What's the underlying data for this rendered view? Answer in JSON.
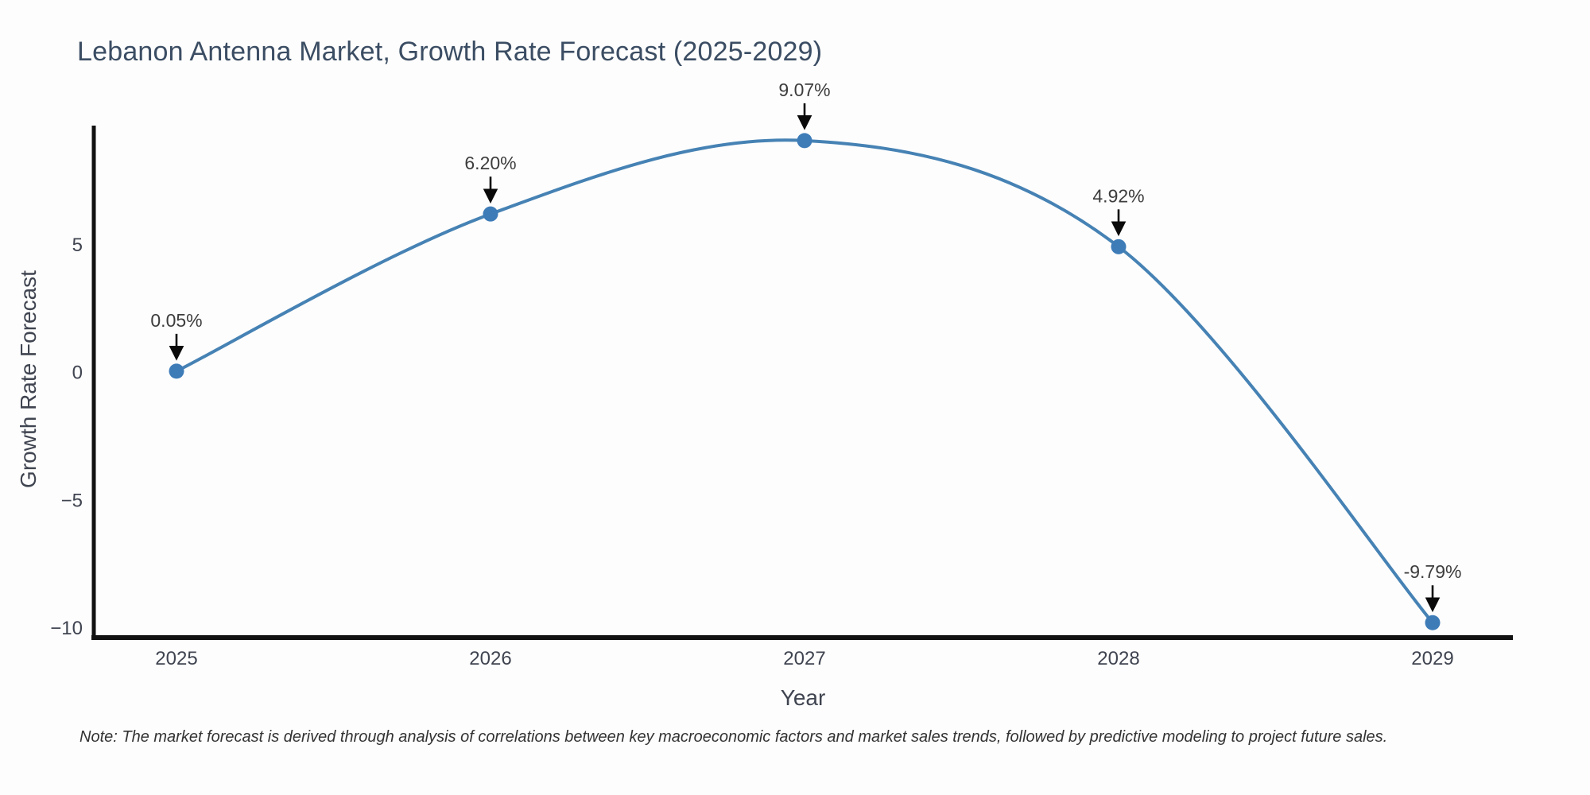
{
  "chart_data": {
    "type": "line",
    "title": "Lebanon Antenna Market, Growth Rate Forecast (2025-2029)",
    "xlabel": "Year",
    "ylabel": "Growth Rate Forecast",
    "x": [
      2025,
      2026,
      2027,
      2028,
      2029
    ],
    "y": [
      0.05,
      6.2,
      9.07,
      4.92,
      -9.79
    ],
    "point_labels": [
      "0.05%",
      "6.20%",
      "9.07%",
      "4.92%",
      "-9.79%"
    ],
    "x_tick_labels": [
      "2025",
      "2026",
      "2027",
      "2028",
      "2029"
    ],
    "y_tick_values": [
      5,
      0,
      -5,
      -10
    ],
    "y_tick_labels": [
      "5",
      "0",
      "−5",
      "−10"
    ],
    "ylim": [
      -10.4,
      9.7
    ],
    "line_shape": "spline",
    "grid": false,
    "legend": false,
    "annotations_have_arrows": true,
    "footnote": "Note: The market forecast is derived through analysis of correlations between key macroeconomic factors and market sales trends, followed by predictive modeling to project future sales.",
    "colors": {
      "line": "#4682b4",
      "marker": "#3e7cb8",
      "axis": "#111111",
      "arrow": "#0a0a0a",
      "title_text": "#3b4d63",
      "tick_text": "#3f4450",
      "annotation_text": "#3d3d3d",
      "note_text": "#333333"
    }
  }
}
